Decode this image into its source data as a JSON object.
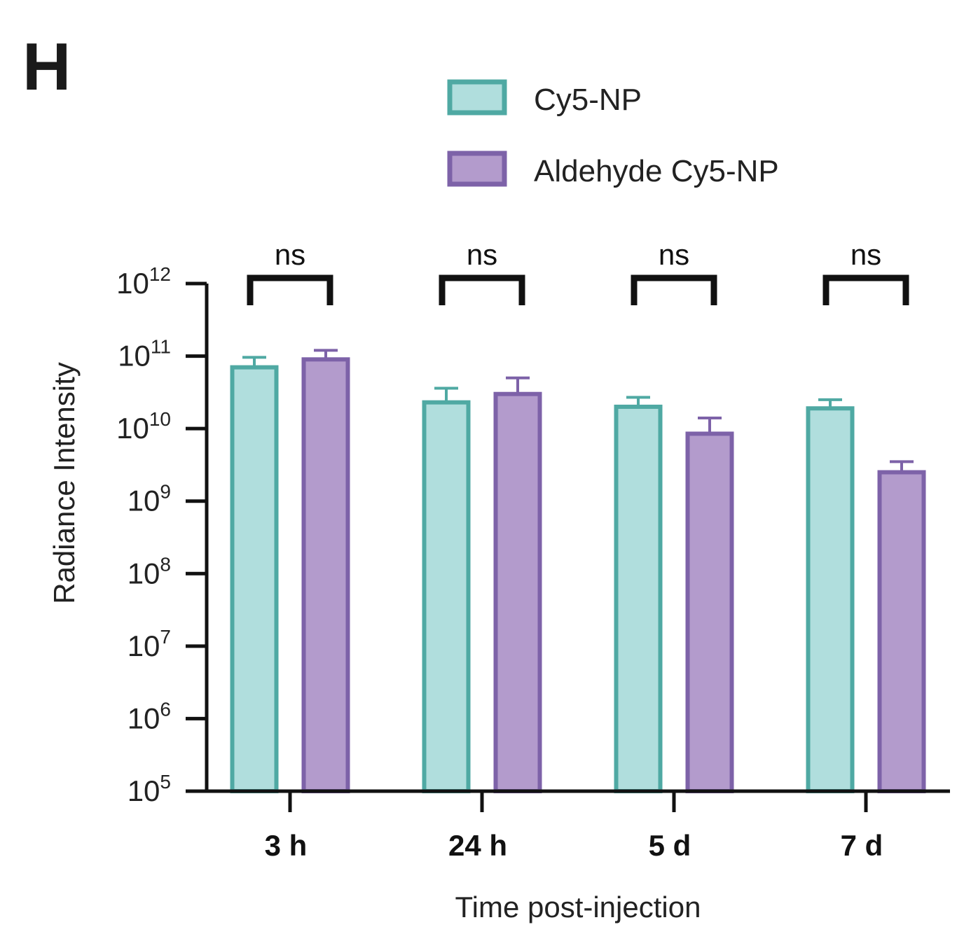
{
  "panel_label": "H",
  "colors": {
    "cy5_fill": "#b0dedd",
    "cy5_stroke": "#4fa9a3",
    "ald_fill": "#b39bcc",
    "ald_stroke": "#7d62a8",
    "axis": "#111111"
  },
  "chart_data": {
    "type": "bar",
    "scale": "log",
    "categories": [
      "3 h",
      "24 h",
      "5 d",
      "7 d"
    ],
    "series": [
      {
        "name": "Cy5-NP",
        "values": [
          70000000000.0,
          23000000000.0,
          20000000000.0,
          19000000000.0
        ],
        "error_upper": [
          96000000000.0,
          36000000000.0,
          27000000000.0,
          25000000000.0
        ]
      },
      {
        "name": "Aldehyde Cy5-NP",
        "values": [
          90000000000.0,
          30000000000.0,
          8500000000.0,
          2500000000.0
        ],
        "error_upper": [
          120000000000.0,
          50000000000.0,
          14000000000.0,
          3500000000.0
        ]
      }
    ],
    "ylim": [
      100000.0,
      1000000000000.0
    ],
    "yticks": [
      {
        "base": "10",
        "exp": "12"
      },
      {
        "base": "10",
        "exp": "11"
      },
      {
        "base": "10",
        "exp": "10"
      },
      {
        "base": "10",
        "exp": "9"
      },
      {
        "base": "10",
        "exp": "8"
      },
      {
        "base": "10",
        "exp": "7"
      },
      {
        "base": "10",
        "exp": "6"
      },
      {
        "base": "10",
        "exp": "5"
      }
    ],
    "xlabel": "Time post-injection",
    "ylabel": "Radiance Intensity",
    "significance": [
      "ns",
      "ns",
      "ns",
      "ns"
    ],
    "legend_position": "top-right",
    "grid": false
  }
}
